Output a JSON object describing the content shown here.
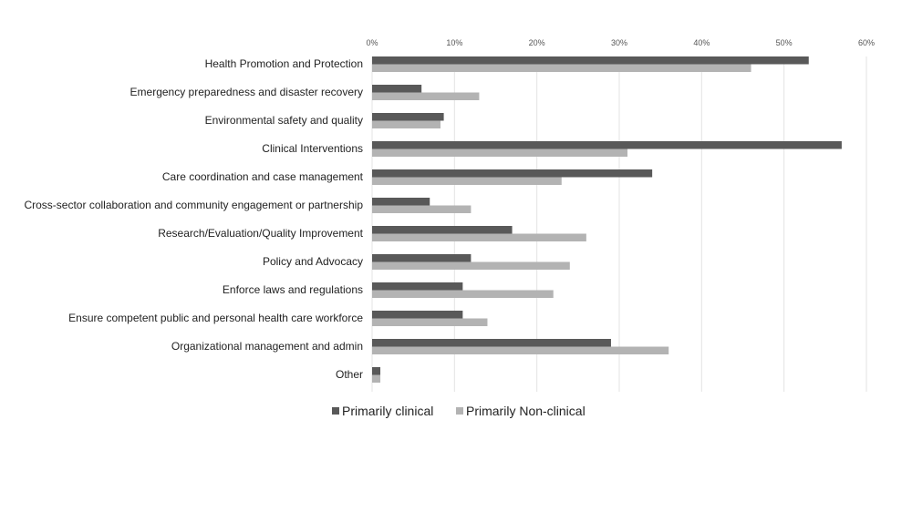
{
  "chart_data": {
    "type": "bar",
    "orientation": "horizontal",
    "title": "",
    "xlabel": "",
    "ylabel": "",
    "xlim": [
      0,
      60
    ],
    "x_ticks": [
      "0%",
      "10%",
      "20%",
      "30%",
      "40%",
      "50%",
      "60%"
    ],
    "x_tick_values": [
      0,
      10,
      20,
      30,
      40,
      50,
      60
    ],
    "grid": true,
    "legend_position": "bottom",
    "categories": [
      "Health Promotion and Protection",
      "Emergency preparedness and disaster recovery",
      "Environmental safety and quality",
      "Clinical Interventions",
      "Care coordination and case management",
      "Cross-sector collaboration and community engagement or partnership",
      "Research/Evaluation/Quality Improvement",
      "Policy and Advocacy",
      "Enforce laws and regulations",
      "Ensure competent public and personal health care workforce",
      "Organizational management and admin",
      "Other"
    ],
    "series": [
      {
        "name": "Primarily clinical",
        "color": "#595959",
        "values": [
          53,
          6,
          8.7,
          57,
          34,
          7,
          17,
          12,
          11,
          11,
          29,
          1
        ]
      },
      {
        "name": "Primarily Non-clinical",
        "color": "#b3b3b3",
        "values": [
          46,
          13,
          8.3,
          31,
          23,
          12,
          26,
          24,
          22,
          14,
          36,
          1
        ]
      }
    ]
  }
}
